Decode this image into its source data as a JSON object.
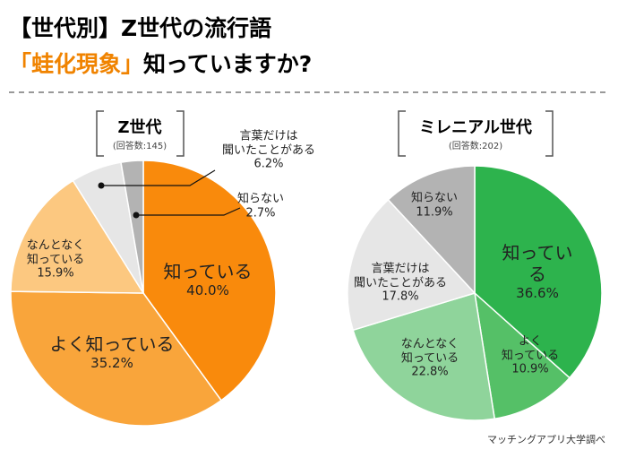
{
  "header": {
    "title": "【世代別】Z世代の流行語",
    "highlight": "「蛙化現象」",
    "subtitle": "知っていますか?"
  },
  "source": "マッチングアプリ大学調べ",
  "chart_data": [
    {
      "type": "pie",
      "title": "Z世代",
      "subtitle": "(回答数:145)",
      "categories": [
        "知っている",
        "よく知っている",
        "なんとなく\n知っている",
        "言葉だけは\n聞いたことがある",
        "知らない"
      ],
      "values": [
        40.0,
        35.2,
        15.9,
        6.2,
        2.7
      ],
      "value_labels": [
        "40.0%",
        "35.2%",
        "15.9%",
        "6.2%",
        "2.7%"
      ],
      "colors": [
        "#f98a0c",
        "#f9a53b",
        "#fcc880",
        "#e6e6e6",
        "#b3b3b3"
      ]
    },
    {
      "type": "pie",
      "title": "ミレニアル世代",
      "subtitle": "(回答数:202)",
      "categories": [
        "知っている",
        "よく\n知っている",
        "なんとなく\n知っている",
        "言葉だけは\n聞いたことがある",
        "知らない"
      ],
      "values": [
        36.6,
        10.9,
        22.8,
        17.8,
        11.9
      ],
      "value_labels": [
        "36.6%",
        "10.9%",
        "22.8%",
        "17.8%",
        "11.9%"
      ],
      "colors": [
        "#2db34d",
        "#55c067",
        "#8fd49b",
        "#e6e6e6",
        "#b3b3b3"
      ]
    }
  ]
}
